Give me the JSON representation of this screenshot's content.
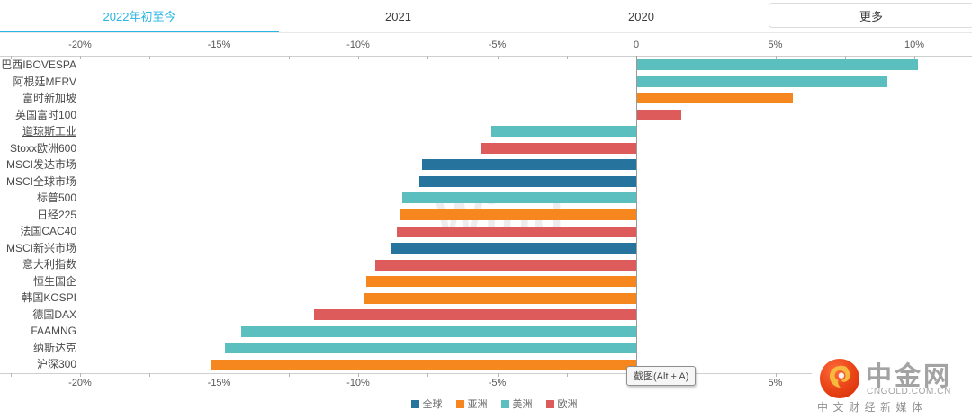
{
  "tabs": [
    {
      "label": "2022年初至今",
      "active": true
    },
    {
      "label": "2021",
      "active": false
    },
    {
      "label": "2020",
      "active": false
    }
  ],
  "more_button": {
    "label": "更多"
  },
  "tooltip": {
    "label": "截图(Alt + A)"
  },
  "logo": {
    "title": "中金网",
    "domain": "CNGOLD.COM.CN",
    "slogan": "中文财经新媒体",
    "accent_color": "#e0390f",
    "swirl_color": "#f6b93d"
  },
  "chart_data": {
    "type": "bar",
    "orientation": "horizontal",
    "unit": "%",
    "watermark": "Wind",
    "active_period": "2022年初至今",
    "grid": false,
    "legend_position": "bottom",
    "x_axis": {
      "range": [
        -22.5,
        12
      ],
      "minor_tick_step": 2.5,
      "ticks": [
        {
          "value": -20,
          "label": "-20%"
        },
        {
          "value": -15,
          "label": "-15%"
        },
        {
          "value": -10,
          "label": "-10%"
        },
        {
          "value": -5,
          "label": "-5%"
        },
        {
          "value": 0,
          "label": "0"
        },
        {
          "value": 5,
          "label": "5%"
        },
        {
          "value": 10,
          "label": "10%"
        }
      ]
    },
    "region_colors": {
      "全球": "#26749D",
      "亚洲": "#F5871E",
      "美洲": "#5CBFBF",
      "欧洲": "#DE5B5B"
    },
    "legend": [
      {
        "label": "全球",
        "color": "#26749D"
      },
      {
        "label": "亚洲",
        "color": "#F5871E"
      },
      {
        "label": "美洲",
        "color": "#5CBFBF"
      },
      {
        "label": "欧洲",
        "color": "#DE5B5B"
      }
    ],
    "points": [
      {
        "label": "巴西IBOVESPA",
        "value": 10.1,
        "region": "美洲"
      },
      {
        "label": "阿根廷MERV",
        "value": 9.0,
        "region": "美洲"
      },
      {
        "label": "富时新加坡",
        "value": 5.6,
        "region": "亚洲"
      },
      {
        "label": "英国富时100",
        "value": 1.6,
        "region": "欧洲"
      },
      {
        "label": "道琼斯工业",
        "value": -5.2,
        "region": "美洲",
        "underline": true
      },
      {
        "label": "Stoxx欧洲600",
        "value": -5.6,
        "region": "欧洲"
      },
      {
        "label": "MSCI发达市场",
        "value": -7.7,
        "region": "全球"
      },
      {
        "label": "MSCI全球市场",
        "value": -7.8,
        "region": "全球"
      },
      {
        "label": "标普500",
        "value": -8.4,
        "region": "美洲"
      },
      {
        "label": "日经225",
        "value": -8.5,
        "region": "亚洲"
      },
      {
        "label": "法国CAC40",
        "value": -8.6,
        "region": "欧洲"
      },
      {
        "label": "MSCI新兴市场",
        "value": -8.8,
        "region": "全球"
      },
      {
        "label": "意大利指数",
        "value": -9.4,
        "region": "欧洲"
      },
      {
        "label": "恒生国企",
        "value": -9.7,
        "region": "亚洲"
      },
      {
        "label": "韩国KOSPI",
        "value": -9.8,
        "region": "亚洲"
      },
      {
        "label": "德国DAX",
        "value": -11.6,
        "region": "欧洲"
      },
      {
        "label": "FAAMNG",
        "value": -14.2,
        "region": "美洲"
      },
      {
        "label": "纳斯达克",
        "value": -14.8,
        "region": "美洲"
      },
      {
        "label": "沪深300",
        "value": -15.3,
        "region": "亚洲"
      }
    ]
  }
}
